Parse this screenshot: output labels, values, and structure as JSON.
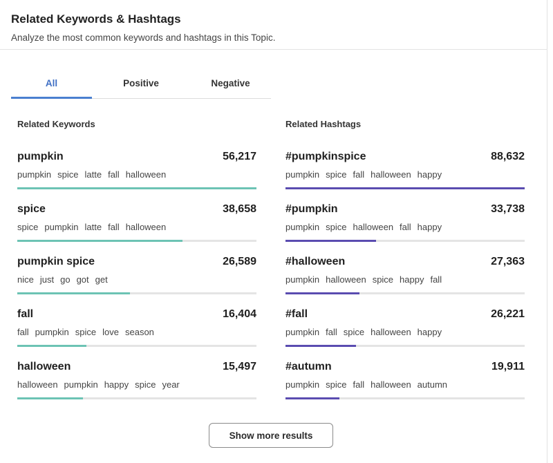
{
  "header": {
    "title": "Related Keywords & Hashtags",
    "subtitle": "Analyze the most common keywords and hashtags in this Topic."
  },
  "tabs": [
    {
      "label": "All",
      "active": true
    },
    {
      "label": "Positive",
      "active": false
    },
    {
      "label": "Negative",
      "active": false
    }
  ],
  "keywords": {
    "heading": "Related Keywords",
    "items": [
      {
        "name": "pumpkin",
        "count": "56,217",
        "share": 1.0,
        "tags": [
          "pumpkin",
          "spice",
          "latte",
          "fall",
          "halloween"
        ]
      },
      {
        "name": "spice",
        "count": "38,658",
        "share": 0.69,
        "tags": [
          "spice",
          "pumpkin",
          "latte",
          "fall",
          "halloween"
        ]
      },
      {
        "name": "pumpkin spice",
        "count": "26,589",
        "share": 0.47,
        "tags": [
          "nice",
          "just",
          "go",
          "got",
          "get"
        ]
      },
      {
        "name": "fall",
        "count": "16,404",
        "share": 0.29,
        "tags": [
          "fall",
          "pumpkin",
          "spice",
          "love",
          "season"
        ]
      },
      {
        "name": "halloween",
        "count": "15,497",
        "share": 0.275,
        "tags": [
          "halloween",
          "pumpkin",
          "happy",
          "spice",
          "year"
        ]
      }
    ]
  },
  "hashtags": {
    "heading": "Related Hashtags",
    "items": [
      {
        "name": "#pumpkinspice",
        "count": "88,632",
        "share": 1.0,
        "tags": [
          "pumpkin",
          "spice",
          "fall",
          "halloween",
          "happy"
        ]
      },
      {
        "name": "#pumpkin",
        "count": "33,738",
        "share": 0.38,
        "tags": [
          "pumpkin",
          "spice",
          "halloween",
          "fall",
          "happy"
        ]
      },
      {
        "name": "#halloween",
        "count": "27,363",
        "share": 0.31,
        "tags": [
          "pumpkin",
          "halloween",
          "spice",
          "happy",
          "fall"
        ]
      },
      {
        "name": "#fall",
        "count": "26,221",
        "share": 0.295,
        "tags": [
          "pumpkin",
          "fall",
          "spice",
          "halloween",
          "happy"
        ]
      },
      {
        "name": "#autumn",
        "count": "19,911",
        "share": 0.225,
        "tags": [
          "pumpkin",
          "spice",
          "fall",
          "halloween",
          "autumn"
        ]
      }
    ]
  },
  "show_more_label": "Show more results"
}
